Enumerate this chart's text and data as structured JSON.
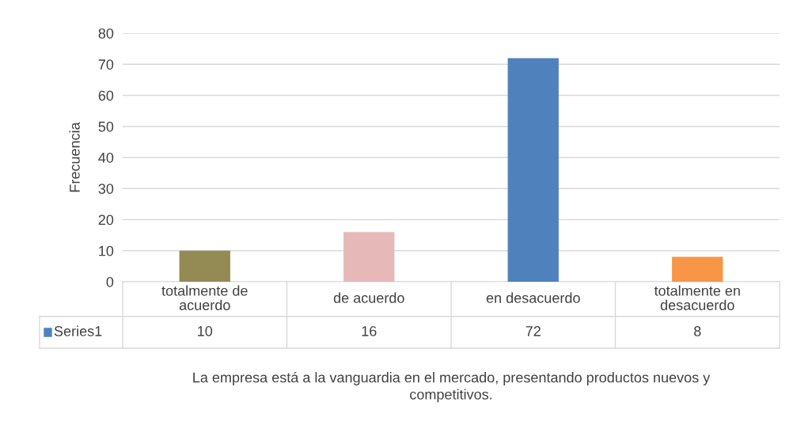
{
  "chart_data": {
    "type": "bar",
    "categories": [
      "totalmente de acuerdo",
      "de acuerdo",
      "en desacuerdo",
      "totalmente en desacuerdo"
    ],
    "series": [
      {
        "name": "Series1",
        "color": "#4f81bd",
        "colors": [
          "#948a54",
          "#e6b9b8",
          "#4f81bd",
          "#f79646"
        ],
        "values": [
          10,
          16,
          72,
          8
        ]
      }
    ],
    "ylabel": "Frecuencia",
    "xlabel": "La empresa está a la vanguardia en el mercado, presentando productos nuevos y competitivos.",
    "ylim": [
      0,
      80
    ],
    "yticks": [
      0,
      10,
      20,
      30,
      40,
      50,
      60,
      70,
      80
    ],
    "grid": "y",
    "data_labels": true,
    "legend": "bottom left"
  }
}
